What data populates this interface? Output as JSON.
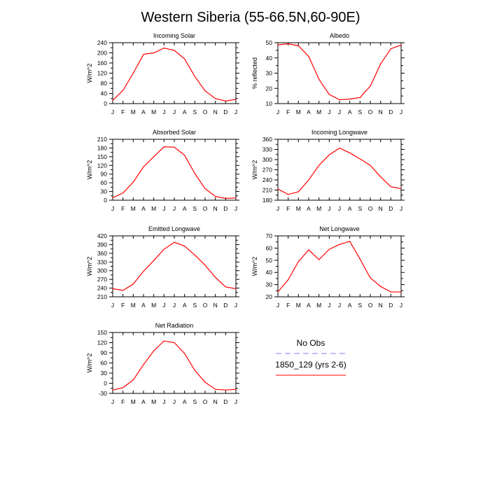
{
  "title": "Western Siberia (55-66.5N,60-90E)",
  "colors": {
    "model": "#ff0000",
    "obs": "#7f7fff"
  },
  "legend": {
    "obs_label": "No Obs",
    "model_label": "1850_129 (yrs 2-6)"
  },
  "months": [
    "J",
    "F",
    "M",
    "A",
    "M",
    "J",
    "J",
    "A",
    "S",
    "O",
    "N",
    "D",
    "J"
  ],
  "chart_data": [
    {
      "type": "line",
      "title": "Incoming Solar",
      "ylabel": "W/m^2",
      "ylim": [
        0,
        240
      ],
      "yticks": [
        "0",
        "20",
        "40",
        "60",
        "80",
        "100",
        "120",
        "140",
        "160",
        "180",
        "200",
        "220",
        "240"
      ],
      "ytick_labels": [
        "0",
        "",
        "40",
        "",
        "80",
        "",
        "120",
        "",
        "160",
        "",
        "200",
        "",
        "240"
      ],
      "series": [
        {
          "name": "1850_129 (yrs 2-6)",
          "values": [
            13,
            52,
            120,
            194,
            200,
            219,
            210,
            176,
            107,
            50,
            20,
            10,
            17
          ]
        }
      ]
    },
    {
      "type": "line",
      "title": "Albedo",
      "ylabel": "% reflected",
      "ylim": [
        10,
        50
      ],
      "yticks": [
        "10",
        "15",
        "20",
        "25",
        "30",
        "35",
        "40",
        "45",
        "50"
      ],
      "ytick_labels": [
        "10",
        "",
        "20",
        "",
        "30",
        "",
        "40",
        "",
        "50"
      ],
      "series": [
        {
          "name": "1850_129 (yrs 2-6)",
          "values": [
            48.5,
            49.3,
            48,
            41,
            26,
            16,
            12.5,
            13,
            14,
            21.5,
            36,
            46,
            48.5
          ]
        }
      ]
    },
    {
      "type": "line",
      "title": "Absorbed Solar",
      "ylabel": "W/m^2",
      "ylim": [
        0,
        210
      ],
      "yticks": [
        "0",
        "15",
        "30",
        "45",
        "60",
        "75",
        "90",
        "105",
        "120",
        "135",
        "150",
        "165",
        "180",
        "195",
        "210"
      ],
      "ytick_labels": [
        "0",
        "",
        "30",
        "",
        "60",
        "",
        "90",
        "",
        "120",
        "",
        "150",
        "",
        "180",
        "",
        "210"
      ],
      "series": [
        {
          "name": "1850_129 (yrs 2-6)",
          "values": [
            8,
            25,
            62,
            115,
            150,
            184,
            183,
            155,
            92,
            40,
            13,
            6,
            8
          ]
        }
      ]
    },
    {
      "type": "line",
      "title": "Incoming Longwave",
      "ylabel": "W/m^2",
      "ylim": [
        180,
        360
      ],
      "yticks": [
        "180",
        "195",
        "210",
        "225",
        "240",
        "255",
        "270",
        "285",
        "300",
        "315",
        "330",
        "345",
        "360"
      ],
      "ytick_labels": [
        "180",
        "",
        "210",
        "",
        "240",
        "",
        "270",
        "",
        "300",
        "",
        "330",
        "",
        "360"
      ],
      "series": [
        {
          "name": "1850_129 (yrs 2-6)",
          "values": [
            213,
            197,
            205,
            240,
            283,
            314,
            334,
            320,
            302,
            283,
            249,
            220,
            214
          ]
        }
      ]
    },
    {
      "type": "line",
      "title": "Emitted Longwave",
      "ylabel": "W/m^2",
      "ylim": [
        210,
        420
      ],
      "yticks": [
        "210",
        "225",
        "240",
        "255",
        "270",
        "285",
        "300",
        "315",
        "330",
        "345",
        "360",
        "375",
        "390",
        "405",
        "420"
      ],
      "ytick_labels": [
        "210",
        "",
        "240",
        "",
        "270",
        "",
        "300",
        "",
        "330",
        "",
        "360",
        "",
        "390",
        "",
        "420"
      ],
      "series": [
        {
          "name": "1850_129 (yrs 2-6)",
          "values": [
            238,
            232,
            254,
            298,
            335,
            374,
            398,
            385,
            354,
            319,
            277,
            244,
            238
          ]
        }
      ]
    },
    {
      "type": "line",
      "title": "Net Longwave",
      "ylabel": "W/m^2",
      "ylim": [
        20,
        70
      ],
      "yticks": [
        "20",
        "25",
        "30",
        "35",
        "40",
        "45",
        "50",
        "55",
        "60",
        "65",
        "70"
      ],
      "ytick_labels": [
        "20",
        "",
        "30",
        "",
        "40",
        "",
        "50",
        "",
        "60",
        "",
        "70"
      ],
      "series": [
        {
          "name": "1850_129 (yrs 2-6)",
          "values": [
            24,
            34,
            49,
            58.5,
            50.5,
            59,
            63,
            65.5,
            51,
            35.5,
            28.5,
            24,
            24
          ]
        }
      ]
    },
    {
      "type": "line",
      "title": "Net Radiation",
      "ylabel": "W/m^2",
      "ylim": [
        -30,
        150
      ],
      "yticks": [
        "-30",
        "-15",
        "0",
        "15",
        "30",
        "45",
        "60",
        "75",
        "90",
        "105",
        "120",
        "135",
        "150"
      ],
      "ytick_labels": [
        "-30",
        "",
        "0",
        "",
        "30",
        "",
        "60",
        "",
        "90",
        "",
        "120",
        "",
        "150"
      ],
      "series": [
        {
          "name": "1850_129 (yrs 2-6)",
          "values": [
            -20,
            -13,
            10,
            55,
            96,
            125,
            120,
            88,
            38,
            3,
            -18,
            -20,
            -18
          ]
        }
      ]
    }
  ]
}
